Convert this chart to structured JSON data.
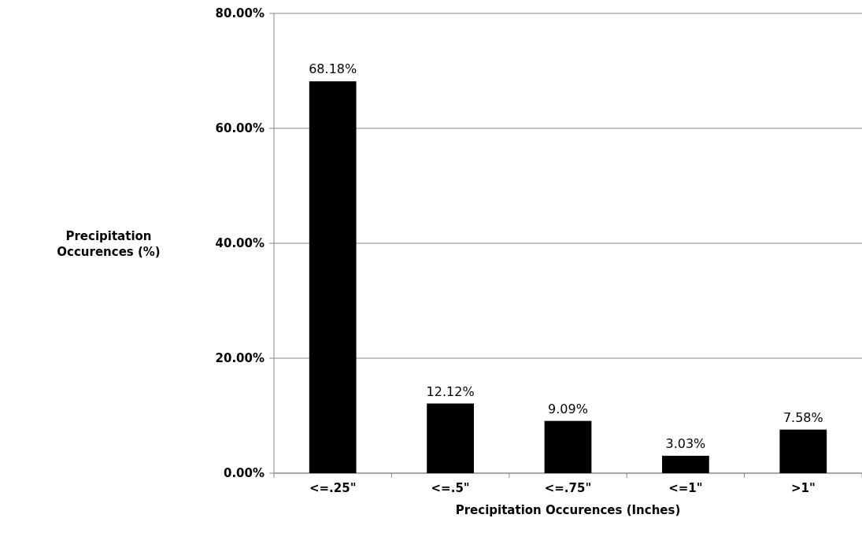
{
  "chart_data": {
    "type": "bar",
    "categories": [
      "<=.25\"",
      "<=.5\"",
      "<=.75\"",
      "<=1\"",
      ">1\""
    ],
    "values": [
      68.18,
      12.12,
      9.09,
      3.03,
      7.58
    ],
    "value_labels": [
      "68.18%",
      "12.12%",
      "9.09%",
      "3.03%",
      "7.58%"
    ],
    "color": "#000000",
    "xlabel": "Precipitation Occurences (Inches)",
    "ylabel": "Precipitation Occurences (%)",
    "ylim": [
      0,
      80
    ],
    "yticks": [
      {
        "value": 0,
        "label": "0.00%"
      },
      {
        "value": 20,
        "label": "20.00%"
      },
      {
        "value": 40,
        "label": "40.00%"
      },
      {
        "value": 60,
        "label": "60.00%"
      },
      {
        "value": 80,
        "label": "80.00%"
      }
    ],
    "grid": "y"
  }
}
